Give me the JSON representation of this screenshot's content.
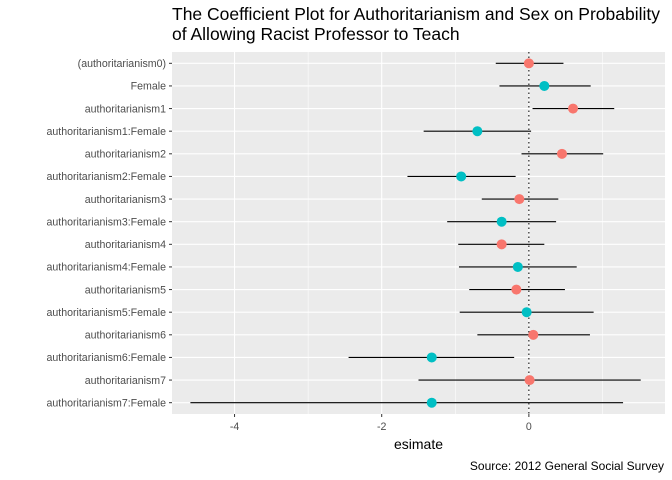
{
  "chart_data": {
    "type": "coefficient-plot",
    "title_lines": [
      "The Coefficient Plot for Authoritarianism and Sex on Probability",
      "of Allowing Racist Professor to Teach"
    ],
    "xlabel": "esimate",
    "ylabel": "",
    "caption": "Source: 2012 General Social Survey",
    "xlim": [
      -4.85,
      1.85
    ],
    "x_ticks": [
      -4,
      -2,
      0
    ],
    "x_tick_labels": [
      "-4",
      "-2",
      "0"
    ],
    "reference_line": 0,
    "grid": true,
    "legend": "none",
    "group_colors": {
      "base": "#F8766D",
      "female": "#00BFC4"
    },
    "terms": [
      {
        "label": "(authoritarianism0)",
        "estimate": 0.0,
        "low": -0.45,
        "high": 0.47,
        "group": "base"
      },
      {
        "label": "Female",
        "estimate": 0.21,
        "low": -0.4,
        "high": 0.84,
        "group": "female"
      },
      {
        "label": "authoritarianism1",
        "estimate": 0.6,
        "low": 0.05,
        "high": 1.16,
        "group": "base"
      },
      {
        "label": "authoritarianism1:Female",
        "estimate": -0.7,
        "low": -1.43,
        "high": 0.03,
        "group": "female"
      },
      {
        "label": "authoritarianism2",
        "estimate": 0.45,
        "low": -0.1,
        "high": 1.01,
        "group": "base"
      },
      {
        "label": "authoritarianism2:Female",
        "estimate": -0.92,
        "low": -1.65,
        "high": -0.18,
        "group": "female"
      },
      {
        "label": "authoritarianism3",
        "estimate": -0.13,
        "low": -0.64,
        "high": 0.4,
        "group": "base"
      },
      {
        "label": "authoritarianism3:Female",
        "estimate": -0.37,
        "low": -1.11,
        "high": 0.37,
        "group": "female"
      },
      {
        "label": "authoritarianism4",
        "estimate": -0.37,
        "low": -0.96,
        "high": 0.21,
        "group": "base"
      },
      {
        "label": "authoritarianism4:Female",
        "estimate": -0.15,
        "low": -0.95,
        "high": 0.65,
        "group": "female"
      },
      {
        "label": "authoritarianism5",
        "estimate": -0.17,
        "low": -0.81,
        "high": 0.49,
        "group": "base"
      },
      {
        "label": "authoritarianism5:Female",
        "estimate": -0.03,
        "low": -0.94,
        "high": 0.88,
        "group": "female"
      },
      {
        "label": "authoritarianism6",
        "estimate": 0.06,
        "low": -0.7,
        "high": 0.83,
        "group": "base"
      },
      {
        "label": "authoritarianism6:Female",
        "estimate": -1.32,
        "low": -2.45,
        "high": -0.2,
        "group": "female"
      },
      {
        "label": "authoritarianism7",
        "estimate": 0.01,
        "low": -1.5,
        "high": 1.52,
        "group": "base"
      },
      {
        "label": "authoritarianism7:Female",
        "estimate": -1.32,
        "low": -4.6,
        "high": 1.28,
        "group": "female"
      }
    ]
  }
}
